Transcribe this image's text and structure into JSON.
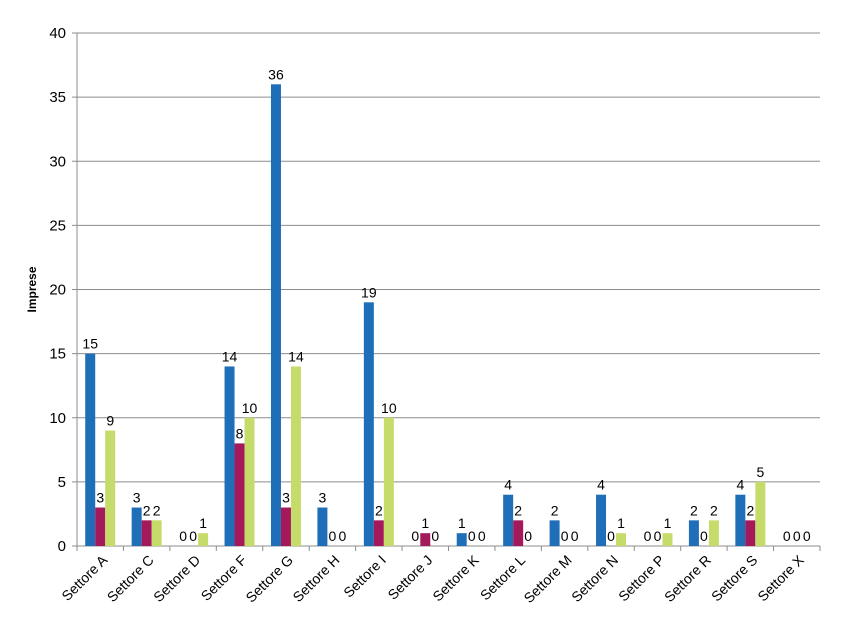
{
  "chart_data": {
    "type": "bar",
    "title": "",
    "xlabel": "",
    "ylabel": "Imprese",
    "ylim": [
      0,
      40
    ],
    "yticks": [
      0,
      5,
      10,
      15,
      20,
      25,
      30,
      35,
      40
    ],
    "grid": true,
    "legend": "none",
    "categories": [
      "Settore A",
      "Settore C",
      "Settore D",
      "Settore F",
      "Settore G",
      "Settore H",
      "Settore I",
      "Settore J",
      "Settore K",
      "Settore L",
      "Settore M",
      "Settore N",
      "Settore P",
      "Settore R",
      "Settore S",
      "Settore X"
    ],
    "series": [
      {
        "values": [
          15,
          3,
          0,
          14,
          36,
          3,
          19,
          0,
          1,
          4,
          2,
          4,
          0,
          2,
          4,
          0
        ],
        "color": "#1F6FB8"
      },
      {
        "values": [
          3,
          2,
          0,
          8,
          3,
          0,
          2,
          1,
          0,
          2,
          0,
          0,
          0,
          0,
          2,
          0
        ],
        "color": "#A3195B"
      },
      {
        "values": [
          9,
          2,
          1,
          10,
          14,
          0,
          10,
          0,
          0,
          0,
          0,
          1,
          1,
          2,
          5,
          0
        ],
        "color": "#C6DC6A"
      }
    ]
  }
}
